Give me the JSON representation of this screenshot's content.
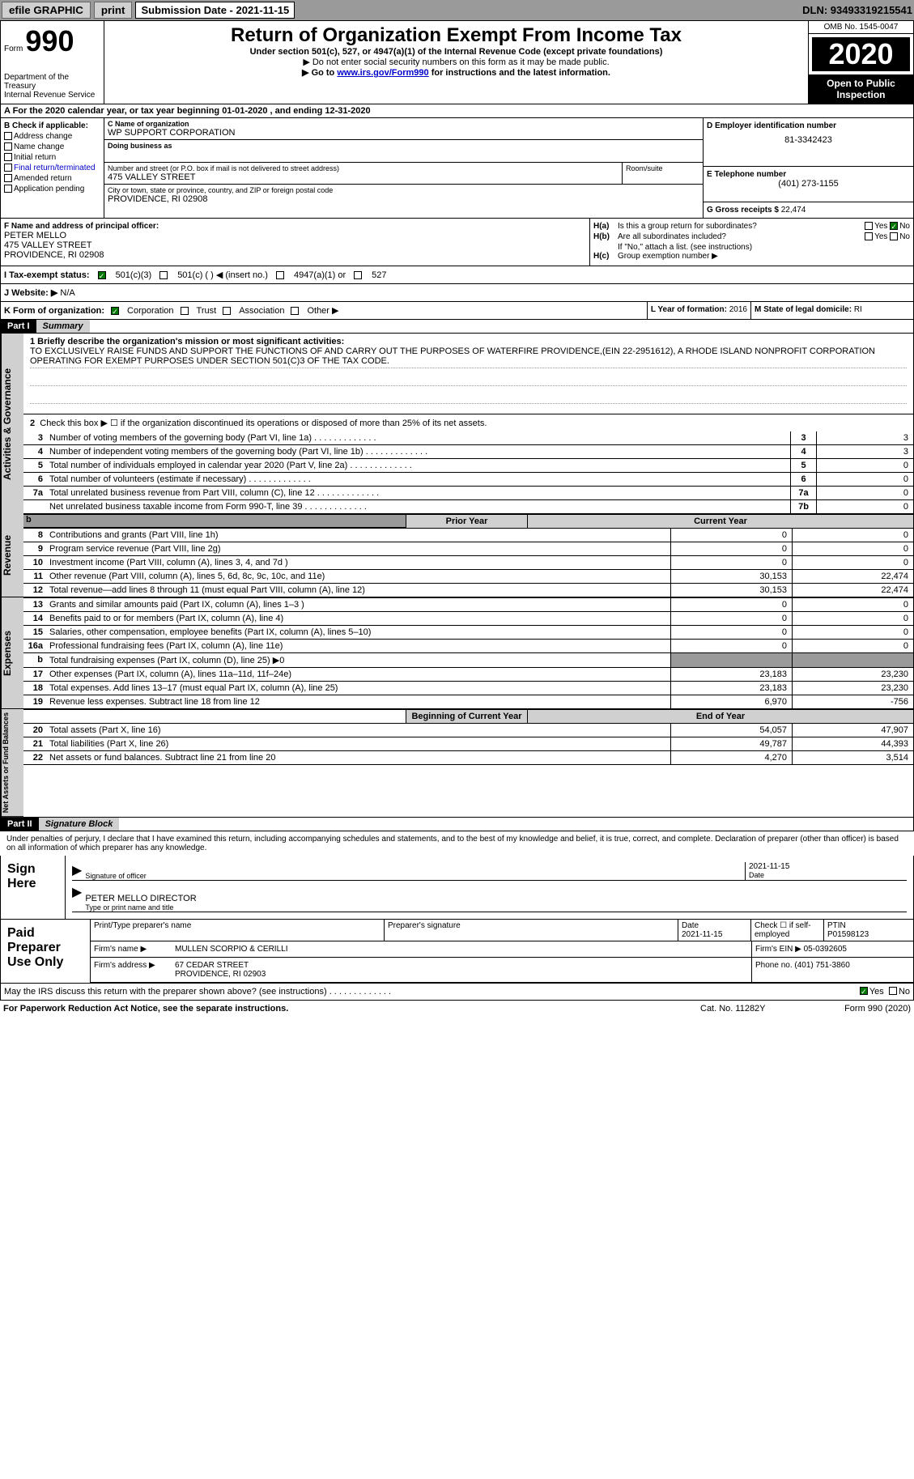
{
  "topbar": {
    "efile": "efile GRAPHIC",
    "print": "print",
    "submission_label": "Submission Date - 2021-11-15",
    "dln": "DLN: 93493319215541"
  },
  "header": {
    "form_prefix": "Form",
    "form_number": "990",
    "title": "Return of Organization Exempt From Income Tax",
    "sub1": "Under section 501(c), 527, or 4947(a)(1) of the Internal Revenue Code (except private foundations)",
    "sub2": "▶ Do not enter social security numbers on this form as it may be made public.",
    "sub3_pre": "▶ Go to ",
    "sub3_link": "www.irs.gov/Form990",
    "sub3_post": " for instructions and the latest information.",
    "dept": "Department of the Treasury\nInternal Revenue Service",
    "omb": "OMB No. 1545-0047",
    "year": "2020",
    "inspect": "Open to Public Inspection"
  },
  "line_a": "A For the 2020 calendar year, or tax year beginning 01-01-2020     , and ending 12-31-2020",
  "section_b": {
    "label": "B Check if applicable:",
    "items": [
      "Address change",
      "Name change",
      "Initial return",
      "Final return/terminated",
      "Amended return",
      "Application pending"
    ]
  },
  "section_c": {
    "name_label": "C Name of organization",
    "name": "WP SUPPORT CORPORATION",
    "dba_label": "Doing business as",
    "addr_label": "Number and street (or P.O. box if mail is not delivered to street address)",
    "addr": "475 VALLEY STREET",
    "room_label": "Room/suite",
    "city_label": "City or town, state or province, country, and ZIP or foreign postal code",
    "city": "PROVIDENCE, RI  02908"
  },
  "section_d": {
    "label": "D Employer identification number",
    "value": "81-3342423"
  },
  "section_e": {
    "label": "E Telephone number",
    "value": "(401) 273-1155"
  },
  "section_g": {
    "label": "G Gross receipts $",
    "value": "22,474"
  },
  "section_f": {
    "label": "F Name and address of principal officer:",
    "name": "PETER MELLO",
    "addr1": "475 VALLEY STREET",
    "addr2": "PROVIDENCE, RI  02908"
  },
  "section_h": {
    "ha_label": "H(a)",
    "ha_text": "Is this a group return for subordinates?",
    "hb_label": "H(b)",
    "hb_text": "Are all subordinates included?",
    "hb_note": "If \"No,\" attach a list. (see instructions)",
    "hc_label": "H(c)",
    "hc_text": "Group exemption number ▶",
    "yes": "Yes",
    "no": "No"
  },
  "row_i": {
    "label": "I    Tax-exempt status:",
    "opt1": "501(c)(3)",
    "opt2": "501(c) (  ) ◀ (insert no.)",
    "opt3": "4947(a)(1) or",
    "opt4": "527"
  },
  "row_j": {
    "label": "J    Website: ▶",
    "value": "N/A"
  },
  "row_k": {
    "label": "K Form of organization:",
    "corp": "Corporation",
    "trust": "Trust",
    "assoc": "Association",
    "other": "Other ▶"
  },
  "row_l": {
    "label": "L Year of formation:",
    "value": "2016"
  },
  "row_m": {
    "label": "M State of legal domicile:",
    "value": "RI"
  },
  "parts": {
    "p1": "Part I",
    "p1_title": "Summary",
    "p2": "Part II",
    "p2_title": "Signature Block"
  },
  "summary": {
    "q1_label": "1  Briefly describe the organization's mission or most significant activities:",
    "mission": "TO EXCLUSIVELY RAISE FUNDS AND SUPPORT THE FUNCTIONS OF AND CARRY OUT THE PURPOSES OF WATERFIRE PROVIDENCE,(EIN 22-2951612), A RHODE ISLAND NONPROFIT CORPORATION OPERATING FOR EXEMPT PURPOSES UNDER SECTION 501(C)3 OF THE TAX CODE.",
    "q2": "Check this box ▶ ☐  if the organization discontinued its operations or disposed of more than 25% of its net assets.",
    "rows": [
      {
        "n": "3",
        "t": "Number of voting members of the governing body (Part VI, line 1a)",
        "box": "3",
        "v": "3"
      },
      {
        "n": "4",
        "t": "Number of independent voting members of the governing body (Part VI, line 1b)",
        "box": "4",
        "v": "3"
      },
      {
        "n": "5",
        "t": "Total number of individuals employed in calendar year 2020 (Part V, line 2a)",
        "box": "5",
        "v": "0"
      },
      {
        "n": "6",
        "t": "Total number of volunteers (estimate if necessary)",
        "box": "6",
        "v": "0"
      },
      {
        "n": "7a",
        "t": "Total unrelated business revenue from Part VIII, column (C), line 12",
        "box": "7a",
        "v": "0"
      },
      {
        "n": "",
        "t": "Net unrelated business taxable income from Form 990-T, line 39",
        "box": "7b",
        "v": "0"
      }
    ],
    "prior_year": "Prior Year",
    "current_year": "Current Year",
    "beg_year": "Beginning of Current Year",
    "end_year": "End of Year"
  },
  "side_labels": {
    "activities": "Activities & Governance",
    "revenue": "Revenue",
    "expenses": "Expenses",
    "netassets": "Net Assets or Fund Balances"
  },
  "revenue_rows": [
    {
      "n": "8",
      "t": "Contributions and grants (Part VIII, line 1h)",
      "p": "0",
      "c": "0"
    },
    {
      "n": "9",
      "t": "Program service revenue (Part VIII, line 2g)",
      "p": "0",
      "c": "0"
    },
    {
      "n": "10",
      "t": "Investment income (Part VIII, column (A), lines 3, 4, and 7d )",
      "p": "0",
      "c": "0"
    },
    {
      "n": "11",
      "t": "Other revenue (Part VIII, column (A), lines 5, 6d, 8c, 9c, 10c, and 11e)",
      "p": "30,153",
      "c": "22,474"
    },
    {
      "n": "12",
      "t": "Total revenue—add lines 8 through 11 (must equal Part VIII, column (A), line 12)",
      "p": "30,153",
      "c": "22,474"
    }
  ],
  "expense_rows": [
    {
      "n": "13",
      "t": "Grants and similar amounts paid (Part IX, column (A), lines 1–3 )",
      "p": "0",
      "c": "0"
    },
    {
      "n": "14",
      "t": "Benefits paid to or for members (Part IX, column (A), line 4)",
      "p": "0",
      "c": "0"
    },
    {
      "n": "15",
      "t": "Salaries, other compensation, employee benefits (Part IX, column (A), lines 5–10)",
      "p": "0",
      "c": "0"
    },
    {
      "n": "16a",
      "t": "Professional fundraising fees (Part IX, column (A), line 11e)",
      "p": "0",
      "c": "0"
    }
  ],
  "expense_16b": {
    "n": "b",
    "t": "Total fundraising expenses (Part IX, column (D), line 25) ▶0"
  },
  "expense_rows2": [
    {
      "n": "17",
      "t": "Other expenses (Part IX, column (A), lines 11a–11d, 11f–24e)",
      "p": "23,183",
      "c": "23,230"
    },
    {
      "n": "18",
      "t": "Total expenses. Add lines 13–17 (must equal Part IX, column (A), line 25)",
      "p": "23,183",
      "c": "23,230"
    },
    {
      "n": "19",
      "t": "Revenue less expenses. Subtract line 18 from line 12",
      "p": "6,970",
      "c": "-756"
    }
  ],
  "netasset_rows": [
    {
      "n": "20",
      "t": "Total assets (Part X, line 16)",
      "p": "54,057",
      "c": "47,907"
    },
    {
      "n": "21",
      "t": "Total liabilities (Part X, line 26)",
      "p": "49,787",
      "c": "44,393"
    },
    {
      "n": "22",
      "t": "Net assets or fund balances. Subtract line 21 from line 20",
      "p": "4,270",
      "c": "3,514"
    }
  ],
  "sig": {
    "penalty": "Under penalties of perjury, I declare that I have examined this return, including accompanying schedules and statements, and to the best of my knowledge and belief, it is true, correct, and complete. Declaration of preparer (other than officer) is based on all information of which preparer has any knowledge.",
    "sign_here": "Sign Here",
    "sig_officer": "Signature of officer",
    "date": "Date",
    "date_val": "2021-11-15",
    "name_title": "PETER MELLO  DIRECTOR",
    "type_name": "Type or print name and title"
  },
  "prep": {
    "title": "Paid Preparer Use Only",
    "print_name": "Print/Type preparer's name",
    "prep_sig": "Preparer's signature",
    "date_lbl": "Date",
    "date_val": "2021-11-15",
    "check_lbl": "Check ☐ if self-employed",
    "ptin_lbl": "PTIN",
    "ptin_val": "P01598123",
    "firm_name_lbl": "Firm's name   ▶",
    "firm_name": "MULLEN SCORPIO & CERILLI",
    "firm_ein_lbl": "Firm's EIN ▶",
    "firm_ein": "05-0392605",
    "firm_addr_lbl": "Firm's address ▶",
    "firm_addr": "67 CEDAR STREET",
    "firm_city": "PROVIDENCE, RI  02903",
    "phone_lbl": "Phone no.",
    "phone": "(401) 751-3860"
  },
  "discuss": {
    "text": "May the IRS discuss this return with the preparer shown above? (see instructions)",
    "yes": "Yes",
    "no": "No"
  },
  "footer": {
    "left": "For Paperwork Reduction Act Notice, see the separate instructions.",
    "mid": "Cat. No. 11282Y",
    "right": "Form 990 (2020)"
  }
}
